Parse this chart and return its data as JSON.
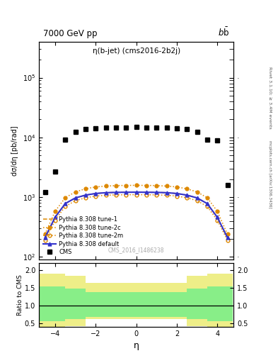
{
  "title_left": "7000 GeV pp",
  "title_right": "b$\\bar{\\text{b}}$",
  "plot_title": "η(b-jet) (cms2016-2b2j)",
  "watermark": "CMS_2016_I1486238",
  "right_label_top": "Rivet 3.1.10; ≥ 3.4M events",
  "right_label_bottom": "mcplots.cern.ch [arXiv:1306.3436]",
  "ylabel_main": "dσ/dη [pb/rad]",
  "ylabel_ratio": "Ratio to CMS",
  "xlabel": "η",
  "xlim": [
    -4.8,
    4.8
  ],
  "ylim_main": [
    90,
    400000
  ],
  "ylim_ratio": [
    0.4,
    2.2
  ],
  "cms_eta": [
    -4.5,
    -4.0,
    -3.5,
    -3.0,
    -2.5,
    -2.0,
    -1.5,
    -1.0,
    -0.5,
    0.0,
    0.5,
    1.0,
    1.5,
    2.0,
    2.5,
    3.0,
    3.5,
    4.0,
    4.5
  ],
  "cms_vals": [
    1200,
    2700,
    9200,
    12500,
    13800,
    14200,
    14500,
    14600,
    14700,
    14800,
    14700,
    14600,
    14500,
    14200,
    13800,
    12500,
    9200,
    8800,
    1600
  ],
  "default_eta": [
    -4.5,
    -4.0,
    -3.5,
    -3.0,
    -2.5,
    -2.0,
    -1.5,
    -1.0,
    -0.5,
    0.0,
    0.5,
    1.0,
    1.5,
    2.0,
    2.5,
    3.0,
    3.5,
    4.0,
    4.5
  ],
  "default_vals": [
    210,
    460,
    780,
    970,
    1080,
    1150,
    1185,
    1200,
    1205,
    1210,
    1205,
    1200,
    1185,
    1150,
    1080,
    970,
    780,
    460,
    210
  ],
  "tune1_eta": [
    -4.5,
    -4.0,
    -3.5,
    -3.0,
    -2.5,
    -2.0,
    -1.5,
    -1.0,
    -0.5,
    0.0,
    0.5,
    1.0,
    1.5,
    2.0,
    2.5,
    3.0,
    3.5,
    4.0,
    4.5
  ],
  "tune1_vals": [
    210,
    460,
    780,
    970,
    1080,
    1150,
    1185,
    1200,
    1205,
    1210,
    1205,
    1200,
    1185,
    1150,
    1080,
    970,
    780,
    460,
    210
  ],
  "tune2c_eta": [
    -4.5,
    -4.0,
    -3.5,
    -3.0,
    -2.5,
    -2.0,
    -1.5,
    -1.0,
    -0.5,
    0.0,
    0.5,
    1.0,
    1.5,
    2.0,
    2.5,
    3.0,
    3.5,
    4.0,
    4.5
  ],
  "tune2c_vals": [
    240,
    580,
    980,
    1220,
    1380,
    1480,
    1530,
    1560,
    1570,
    1575,
    1570,
    1560,
    1530,
    1480,
    1380,
    1220,
    980,
    580,
    240
  ],
  "tune2m_eta": [
    -4.5,
    -4.0,
    -3.5,
    -3.0,
    -2.5,
    -2.0,
    -1.5,
    -1.0,
    -0.5,
    0.0,
    0.5,
    1.0,
    1.5,
    2.0,
    2.5,
    3.0,
    3.5,
    4.0,
    4.5
  ],
  "tune2m_vals": [
    190,
    410,
    700,
    870,
    975,
    1040,
    1075,
    1090,
    1095,
    1100,
    1095,
    1090,
    1075,
    1040,
    975,
    870,
    700,
    410,
    190
  ],
  "ratio_yellow_bins": [
    [
      -4.75,
      -3.5
    ],
    [
      -3.5,
      -2.5
    ],
    [
      -2.5,
      1.5
    ],
    [
      1.5,
      2.5
    ],
    [
      2.5,
      3.5
    ],
    [
      3.5,
      4.75
    ]
  ],
  "ratio_yellow_lo": [
    0.38,
    0.42,
    0.62,
    0.62,
    0.42,
    0.38
  ],
  "ratio_yellow_hi": [
    1.9,
    1.85,
    1.65,
    1.65,
    1.85,
    1.9
  ],
  "ratio_green_bins": [
    [
      -4.75,
      -3.5
    ],
    [
      -3.5,
      -2.5
    ],
    [
      -2.5,
      1.5
    ],
    [
      1.5,
      2.5
    ],
    [
      2.5,
      3.5
    ],
    [
      3.5,
      4.75
    ]
  ],
  "ratio_green_lo": [
    0.55,
    0.62,
    0.68,
    0.68,
    0.62,
    0.55
  ],
  "ratio_green_hi": [
    1.55,
    1.48,
    1.38,
    1.38,
    1.48,
    1.55
  ],
  "color_default": "#3333cc",
  "color_tune1": "#dd8800",
  "color_tune2c": "#dd8800",
  "color_tune2m": "#dd8800"
}
